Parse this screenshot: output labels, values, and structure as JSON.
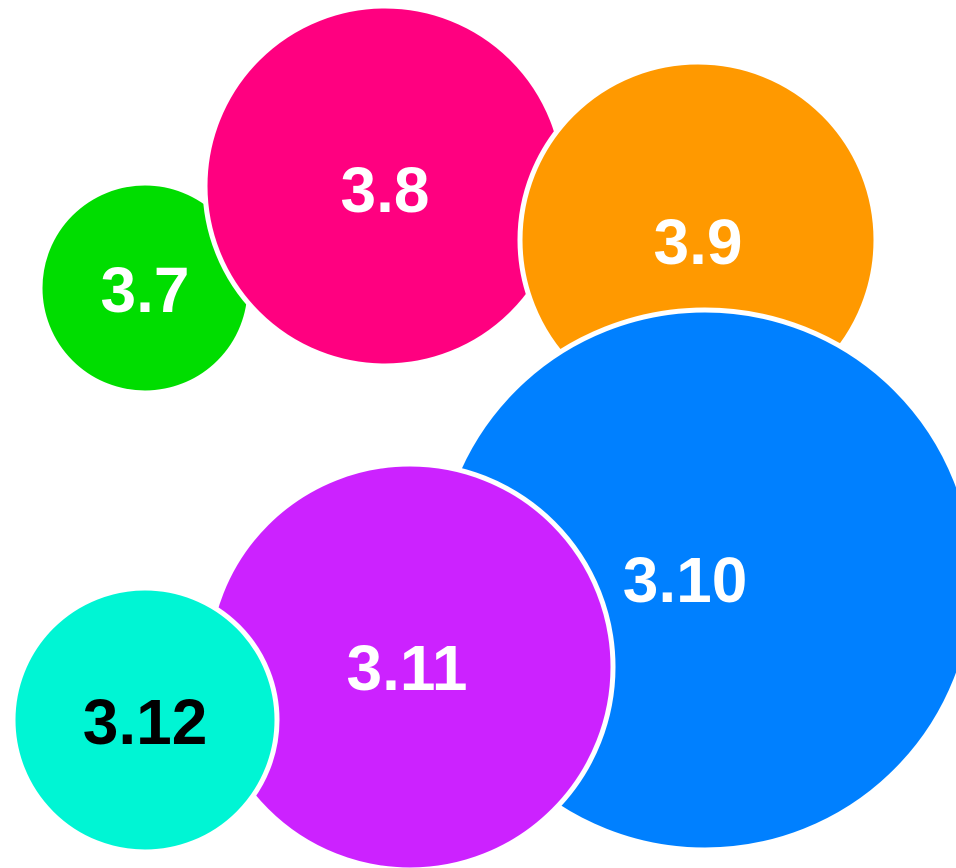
{
  "diagram": {
    "bubbles": [
      {
        "id": "3.7",
        "label": "3.7",
        "color": "#00dd00",
        "text_color": "#ffffff"
      },
      {
        "id": "3.8",
        "label": "3.8",
        "color": "#ff0080",
        "text_color": "#ffffff"
      },
      {
        "id": "3.9",
        "label": "3.9",
        "color": "#ff9900",
        "text_color": "#ffffff"
      },
      {
        "id": "3.10",
        "label": "3.10",
        "color": "#0080ff",
        "text_color": "#ffffff"
      },
      {
        "id": "3.11",
        "label": "3.11",
        "color": "#cc22ff",
        "text_color": "#ffffff"
      },
      {
        "id": "3.12",
        "label": "3.12",
        "color": "#00f5d4",
        "text_color": "#000000"
      }
    ]
  }
}
